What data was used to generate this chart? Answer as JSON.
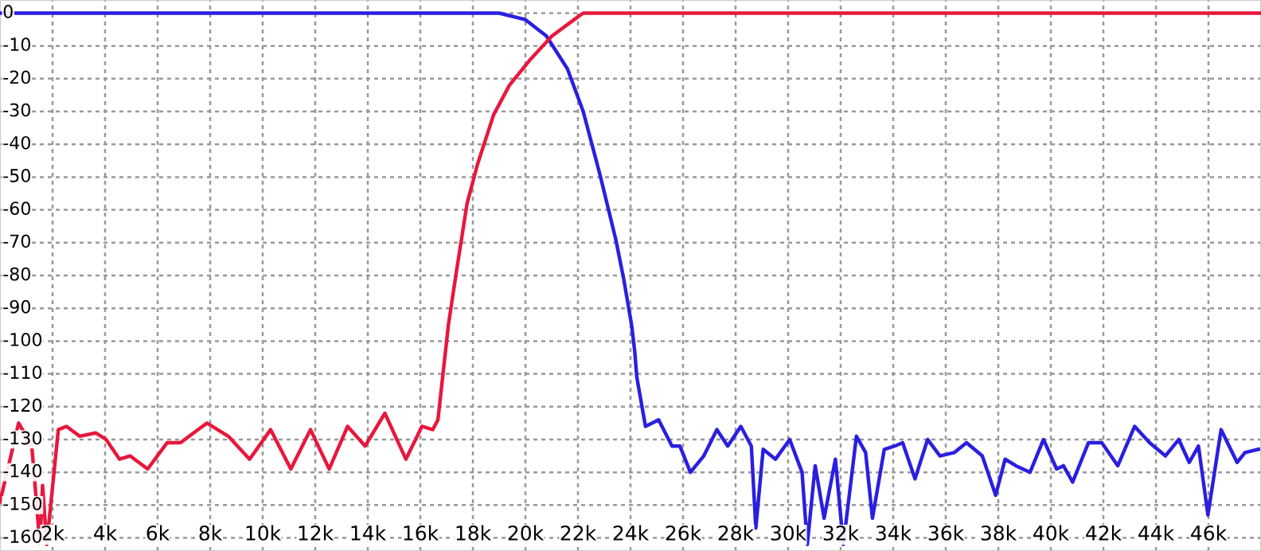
{
  "chart_data": {
    "type": "line",
    "xlim": [
      0,
      48000
    ],
    "ylim": [
      -164,
      4
    ],
    "xticks": [
      {
        "value": 2000,
        "label": "2k"
      },
      {
        "value": 4000,
        "label": "4k"
      },
      {
        "value": 6000,
        "label": "6k"
      },
      {
        "value": 8000,
        "label": "8k"
      },
      {
        "value": 10000,
        "label": "10k"
      },
      {
        "value": 12000,
        "label": "12k"
      },
      {
        "value": 14000,
        "label": "14k"
      },
      {
        "value": 16000,
        "label": "16k"
      },
      {
        "value": 18000,
        "label": "18k"
      },
      {
        "value": 20000,
        "label": "20k"
      },
      {
        "value": 22000,
        "label": "22k"
      },
      {
        "value": 24000,
        "label": "24k"
      },
      {
        "value": 26000,
        "label": "26k"
      },
      {
        "value": 28000,
        "label": "28k"
      },
      {
        "value": 30000,
        "label": "30k"
      },
      {
        "value": 32000,
        "label": "32k"
      },
      {
        "value": 34000,
        "label": "34k"
      },
      {
        "value": 36000,
        "label": "36k"
      },
      {
        "value": 38000,
        "label": "38k"
      },
      {
        "value": 40000,
        "label": "40k"
      },
      {
        "value": 42000,
        "label": "42k"
      },
      {
        "value": 44000,
        "label": "44k"
      },
      {
        "value": 46000,
        "label": "46k"
      }
    ],
    "yticks": [
      0,
      -10,
      -20,
      -30,
      -40,
      -50,
      -60,
      -70,
      -80,
      -90,
      -100,
      -110,
      -120,
      -130,
      -140,
      -150,
      -160
    ],
    "grid": true,
    "marker": "none",
    "line_style": "solid",
    "series": [
      {
        "color": "#2a1fe0",
        "x": [
          0,
          19000,
          20000,
          20800,
          21600,
          22200,
          22830,
          23440,
          23740,
          24040,
          24160,
          24240,
          24570,
          25070,
          25580,
          25880,
          26280,
          26790,
          27290,
          27700,
          28200,
          28600,
          28770,
          29050,
          29520,
          30060,
          30530,
          30730,
          31030,
          31370,
          31800,
          32100,
          32600,
          32950,
          33210,
          33660,
          34060,
          34360,
          34830,
          35310,
          35780,
          36320,
          36790,
          37390,
          37900,
          38260,
          38670,
          39210,
          39720,
          40220,
          40480,
          40830,
          41430,
          41940,
          42550,
          43190,
          43760,
          44360,
          44870,
          45270,
          45620,
          45980,
          46480,
          47090,
          47390,
          47900
        ],
        "values": [
          0,
          0,
          -2,
          -7,
          -17,
          -30,
          -49,
          -69,
          -81,
          -95,
          -103,
          -111,
          -126,
          -124,
          -132,
          -132,
          -140,
          -135,
          -127,
          -132,
          -126,
          -132,
          -157,
          -133,
          -136,
          -130,
          -140,
          -162,
          -138,
          -154,
          -136,
          -162,
          -129,
          -134,
          -154,
          -133,
          -132,
          -131,
          -142,
          -130,
          -135,
          -134,
          -131,
          -135,
          -147,
          -136,
          -138,
          -140,
          -130,
          -139,
          -138,
          -143,
          -131,
          -131,
          -138,
          -126,
          -131,
          -135,
          -130,
          -137,
          -132,
          -153,
          -127,
          -137,
          -134,
          -133
        ]
      },
      {
        "color": "#e8173c",
        "x": [
          0,
          710,
          1210,
          1520,
          1620,
          1780,
          2220,
          2530,
          3030,
          3640,
          4040,
          4550,
          4950,
          5620,
          6360,
          6870,
          7880,
          8690,
          9500,
          10300,
          11070,
          11820,
          12530,
          13230,
          13900,
          14650,
          15450,
          16060,
          16470,
          16670,
          17070,
          17370,
          17780,
          18180,
          18790,
          19390,
          20200,
          21010,
          22020,
          22200,
          48000
        ],
        "values": [
          -149,
          -125,
          -132,
          -162,
          -144,
          -162,
          -127,
          -126,
          -129,
          -128,
          -130,
          -136,
          -135,
          -139,
          -131,
          -131,
          -125,
          -129,
          -136,
          -127,
          -139,
          -127,
          -139,
          -126,
          -132,
          -122,
          -136,
          -126,
          -127,
          -124,
          -95,
          -79,
          -58,
          -46,
          -31,
          -22,
          -14,
          -7,
          -1,
          0,
          0
        ]
      }
    ]
  }
}
